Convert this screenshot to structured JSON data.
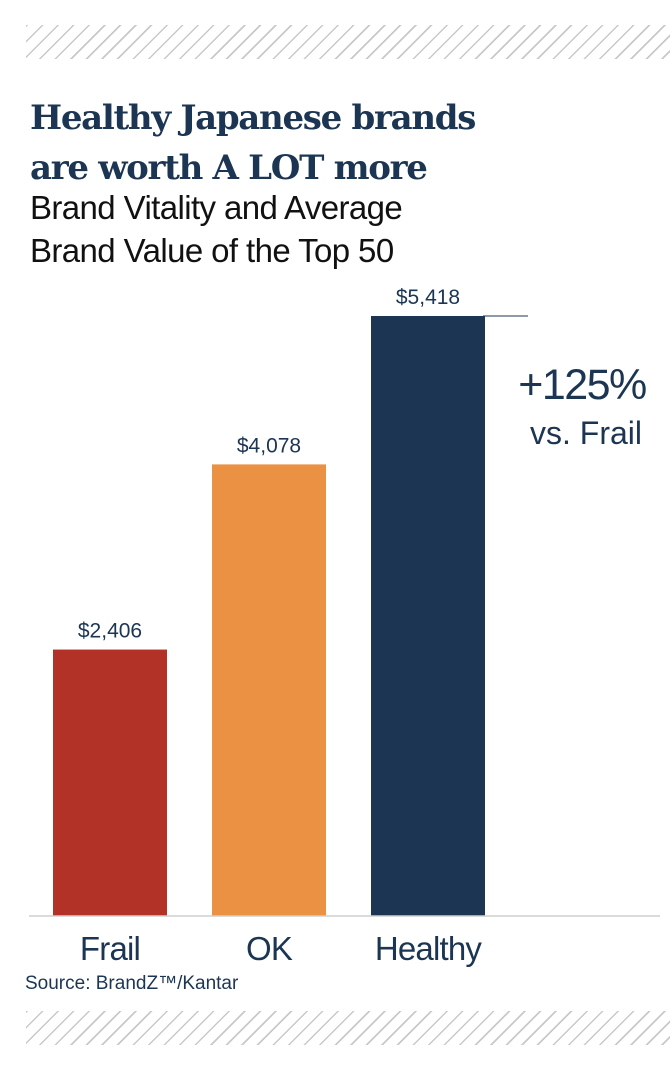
{
  "title_line1": "Healthy Japanese brands",
  "title_line2": "are worth A LOT more",
  "subtitle_line1": "Brand Vitality and Average",
  "subtitle_line2": "Brand Value of the Top 50",
  "source": "Source: BrandZ™/Kantar",
  "chart_data": {
    "type": "bar",
    "title": "Healthy Japanese brands are worth A LOT more",
    "subtitle": "Brand Vitality and Average Brand Value of the Top 50",
    "categories": [
      "Frail",
      "OK",
      "Healthy"
    ],
    "values": [
      2406,
      4078,
      5418
    ],
    "value_labels": [
      "$2,406",
      "$4,078",
      "$5,418"
    ],
    "colors": [
      "#b33227",
      "#ea9143",
      "#1b3552"
    ],
    "ylim": [
      0,
      5418
    ],
    "grid": false,
    "annotation": {
      "value": "+125%",
      "text": "vs. Frail"
    }
  }
}
